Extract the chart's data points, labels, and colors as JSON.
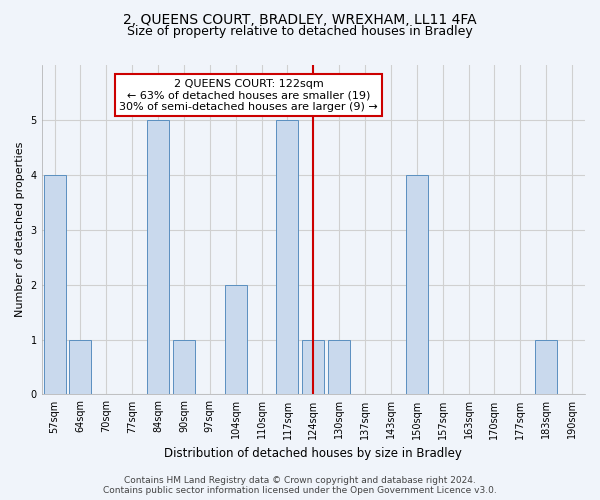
{
  "title1": "2, QUEENS COURT, BRADLEY, WREXHAM, LL11 4FA",
  "title2": "Size of property relative to detached houses in Bradley",
  "xlabel": "Distribution of detached houses by size in Bradley",
  "ylabel": "Number of detached properties",
  "footnote": "Contains HM Land Registry data © Crown copyright and database right 2024.\nContains public sector information licensed under the Open Government Licence v3.0.",
  "categories": [
    "57sqm",
    "64sqm",
    "70sqm",
    "77sqm",
    "84sqm",
    "90sqm",
    "97sqm",
    "104sqm",
    "110sqm",
    "117sqm",
    "124sqm",
    "130sqm",
    "137sqm",
    "143sqm",
    "150sqm",
    "157sqm",
    "163sqm",
    "170sqm",
    "177sqm",
    "183sqm",
    "190sqm"
  ],
  "values": [
    4,
    1,
    0,
    0,
    5,
    1,
    0,
    2,
    0,
    5,
    1,
    1,
    0,
    0,
    4,
    0,
    0,
    0,
    0,
    1,
    0
  ],
  "bar_color": "#c9d9ed",
  "bar_edge_color": "#5a8fc0",
  "highlight_index": 10,
  "highlight_line_color": "#cc0000",
  "annotation_text": "2 QUEENS COURT: 122sqm\n← 63% of detached houses are smaller (19)\n30% of semi-detached houses are larger (9) →",
  "annotation_box_color": "#ffffff",
  "annotation_box_edge_color": "#cc0000",
  "ylim": [
    0,
    6
  ],
  "yticks": [
    0,
    1,
    2,
    3,
    4,
    5,
    6
  ],
  "grid_color": "#d0d0d0",
  "bg_color": "#f0f4fa",
  "title1_fontsize": 10,
  "title2_fontsize": 9,
  "xlabel_fontsize": 8.5,
  "ylabel_fontsize": 8,
  "tick_fontsize": 7,
  "annotation_fontsize": 8,
  "footnote_fontsize": 6.5
}
